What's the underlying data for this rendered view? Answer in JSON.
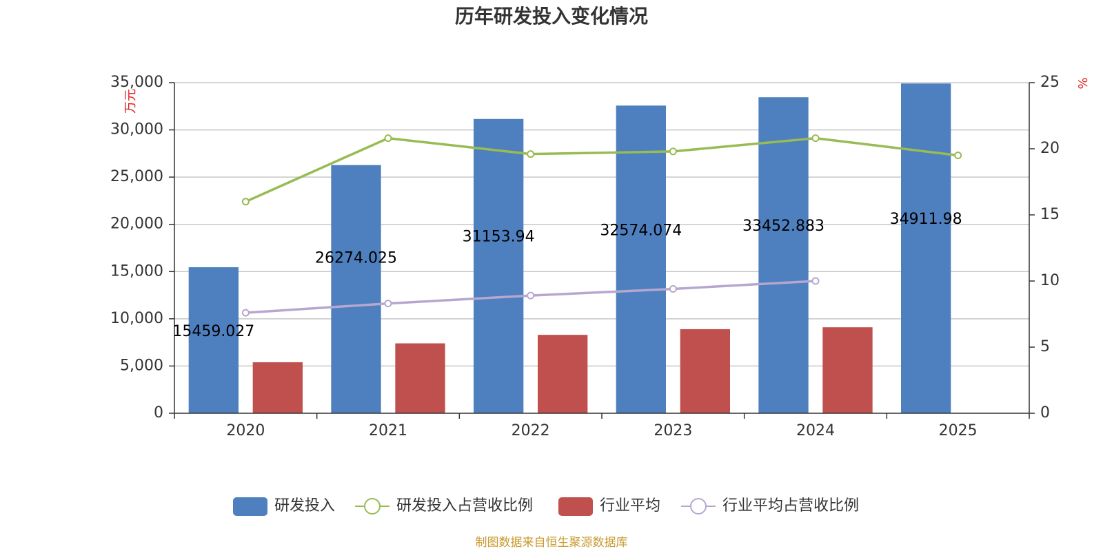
{
  "chart_data": {
    "type": "bar",
    "title": "历年研发投入变化情况",
    "categories": [
      "2020",
      "2021",
      "2022",
      "2023",
      "2024",
      "2025"
    ],
    "y_left": {
      "unit": "万元",
      "ylim": [
        0,
        35000
      ],
      "ticks": [
        "0",
        "5,000",
        "10,000",
        "15,000",
        "20,000",
        "25,000",
        "30,000",
        "35,000"
      ],
      "tick_values": [
        0,
        5000,
        10000,
        15000,
        20000,
        25000,
        30000,
        35000
      ]
    },
    "y_right": {
      "unit": "%",
      "ylim": [
        0,
        25
      ],
      "ticks": [
        "0",
        "5",
        "10",
        "15",
        "20",
        "25"
      ],
      "tick_values": [
        0,
        5,
        10,
        15,
        20,
        25
      ]
    },
    "series": [
      {
        "name": "研发投入",
        "type": "bar",
        "axis": "left",
        "color": "#4e7fbf",
        "values": [
          15459.027,
          26274.025,
          31153.94,
          32574.074,
          33452.883,
          34911.98
        ],
        "labels": [
          "15459.027",
          "26274.025",
          "31153.94",
          "32574.074",
          "33452.883",
          "34911.98"
        ]
      },
      {
        "name": "研发投入占营收比例",
        "type": "line",
        "axis": "right",
        "color": "#98bb53",
        "values": [
          16.0,
          20.8,
          19.6,
          19.8,
          20.8,
          19.5
        ]
      },
      {
        "name": "行业平均",
        "type": "bar",
        "axis": "left",
        "color": "#c0504d",
        "values": [
          5400,
          7400,
          8300,
          8900,
          9100,
          null
        ]
      },
      {
        "name": "行业平均占营收比例",
        "type": "line",
        "axis": "right",
        "color": "#b6a7cf",
        "values": [
          7.6,
          8.3,
          8.9,
          9.4,
          10.0,
          null
        ]
      }
    ],
    "grid": true,
    "legend_position": "bottom"
  },
  "source_text": "制图数据来自恒生聚源数据库"
}
